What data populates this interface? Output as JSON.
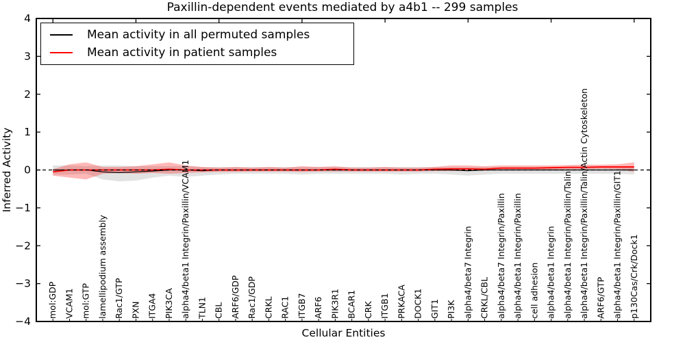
{
  "chart_data": {
    "type": "line",
    "title": "Paxillin-dependent events mediated by a4b1 -- 299 samples",
    "xlabel": "Cellular Entities",
    "ylabel": "Inferred Activity",
    "ylim": [
      -4,
      4
    ],
    "yticks": [
      -4,
      -3,
      -2,
      -1,
      0,
      1,
      2,
      3,
      4
    ],
    "grid": false,
    "legend_position": "upper left",
    "x_tick_label_rotation": 90,
    "zero_line": {
      "style": "dashed",
      "color": "#000000",
      "y": 0
    },
    "categories": [
      "mol:GDP",
      "VCAM1",
      "mol:GTP",
      "lamellipodium assembly",
      "Rac1/GTP",
      "PXN",
      "ITGA4",
      "PIK3CA",
      "alpha4/beta1 Integrin/Paxillin/VCAM1",
      "TLN1",
      "CBL",
      "ARF6/GDP",
      "Rac1/GDP",
      "CRKL",
      "RAC1",
      "ITGB7",
      "ARF6",
      "PIK3R1",
      "BCAR1",
      "CRK",
      "ITGB1",
      "PRKACA",
      "DOCK1",
      "GIT1",
      "PI3K",
      "alpha4/beta7 Integrin",
      "CRKL/CBL",
      "alpha4/beta7 Integrin/Paxillin",
      "alpha4/beta1 Integrin/Paxillin",
      "cell adhesion",
      "alpha4/beta1 Integrin",
      "alpha4/beta1 Integrin/Paxillin/Talin",
      "alpha4/beta1 Integrin/Paxillin/Talin/Actin Cytoskeleton",
      "ARF6/GTP",
      "alpha4/beta1 Integrin/Paxillin/GIT1",
      "p130Cas/Crk/Dock1"
    ],
    "series": [
      {
        "name": "Mean activity in all permuted samples",
        "color": "#000000",
        "line_width": 1.3,
        "band_color": "#bfbfbf",
        "band_opacity": 0.45,
        "values": [
          0,
          0,
          0,
          -0.05,
          -0.07,
          -0.05,
          -0.03,
          0,
          0,
          -0.02,
          0,
          0,
          0,
          0,
          0,
          0,
          0,
          0,
          0,
          0,
          0,
          0,
          0,
          0,
          0,
          -0.02,
          0,
          0,
          0,
          0,
          0,
          0,
          0,
          0,
          0,
          0
        ],
        "band_lower": [
          -0.12,
          -0.12,
          -0.1,
          -0.25,
          -0.3,
          -0.28,
          -0.2,
          -0.15,
          -0.18,
          -0.15,
          -0.12,
          -0.1,
          -0.1,
          -0.1,
          -0.1,
          -0.12,
          -0.1,
          -0.1,
          -0.1,
          -0.1,
          -0.1,
          -0.12,
          -0.1,
          -0.1,
          -0.12,
          -0.15,
          -0.12,
          -0.1,
          -0.1,
          -0.1,
          -0.1,
          -0.1,
          -0.1,
          -0.1,
          -0.1,
          -0.12
        ],
        "band_upper": [
          0.12,
          0.12,
          0.1,
          0.12,
          0.12,
          0.1,
          0.1,
          0.1,
          0.1,
          0.08,
          0.08,
          0.08,
          0.08,
          0.08,
          0.08,
          0.08,
          0.08,
          0.08,
          0.08,
          0.08,
          0.08,
          0.08,
          0.08,
          0.08,
          0.08,
          0.08,
          0.08,
          0.08,
          0.08,
          0.08,
          0.08,
          0.08,
          0.08,
          0.08,
          0.08,
          0.1
        ]
      },
      {
        "name": "Mean activity in patient samples",
        "color": "#ff0000",
        "line_width": 1.8,
        "band_color": "#ff0000",
        "band_opacity": 0.28,
        "values": [
          -0.05,
          0,
          0,
          0,
          0,
          0,
          0,
          0.02,
          0,
          0,
          0,
          0,
          0,
          0,
          0,
          0,
          0,
          0.02,
          0,
          0,
          0,
          0,
          0,
          0.02,
          0.03,
          0.03,
          0.02,
          0.05,
          0.05,
          0.05,
          0.06,
          0.07,
          0.07,
          0.08,
          0.08,
          0.08
        ],
        "band_lower": [
          -0.15,
          -0.2,
          -0.25,
          -0.1,
          -0.08,
          -0.1,
          -0.08,
          -0.1,
          -0.08,
          -0.06,
          -0.05,
          -0.05,
          -0.04,
          -0.04,
          -0.04,
          -0.05,
          -0.04,
          -0.04,
          -0.04,
          -0.04,
          -0.04,
          -0.04,
          -0.04,
          -0.03,
          -0.03,
          -0.02,
          -0.02,
          0,
          0,
          0,
          0.01,
          0.02,
          0.02,
          0.03,
          0.02,
          -0.05
        ],
        "band_upper": [
          0.02,
          0.15,
          0.2,
          0.08,
          0.08,
          0.1,
          0.15,
          0.2,
          0.12,
          0.08,
          0.06,
          0.08,
          0.06,
          0.08,
          0.06,
          0.1,
          0.08,
          0.1,
          0.06,
          0.06,
          0.08,
          0.06,
          0.06,
          0.08,
          0.12,
          0.12,
          0.1,
          0.12,
          0.12,
          0.12,
          0.12,
          0.13,
          0.14,
          0.14,
          0.15,
          0.2
        ]
      }
    ]
  }
}
